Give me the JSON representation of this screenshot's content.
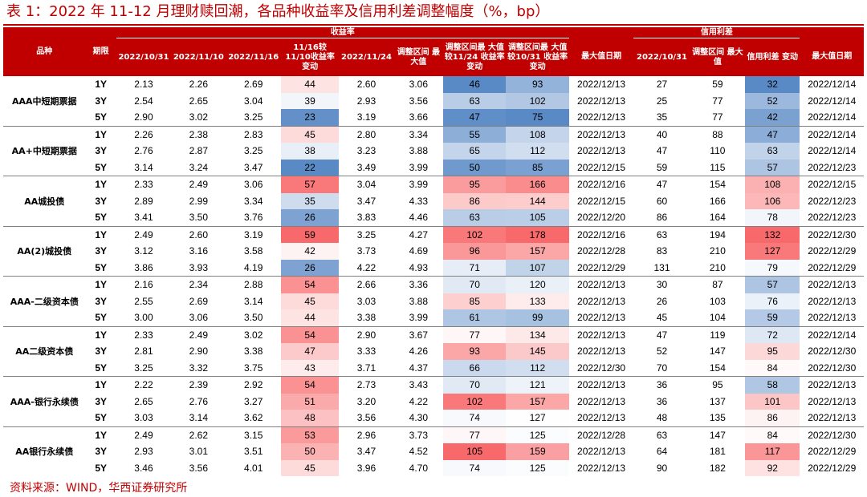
{
  "title": "表 1：2022 年 11-12 月理财赎回潮，各品种收益率及信用利差调整幅度（%，bp）",
  "source": "资料来源：WIND，华西证券研究所",
  "colors": {
    "brand_red": "#c00000",
    "scale_low": "#5a8ac6",
    "scale_mid": "#ffffff",
    "scale_high": "#f8696b"
  },
  "header": {
    "variety": "品种",
    "period": "期限",
    "yield_group": "收益率",
    "spread_group": "信用利差",
    "cols": [
      "2022/10/31",
      "2022/11/10",
      "2022/11/16",
      "11/16较 11/10收益率 变动",
      "2022/11/24",
      "调整区间 最大值",
      "调整区间最 大值较11/24 收益率变动",
      "调整区间最 大值较10/31 收益率变动",
      "最大值日期",
      "2022/10/31",
      "调整区间 最大值",
      "信用利差 变动",
      "最大值日期"
    ]
  },
  "groups": [
    {
      "name": "AAA中短期票据",
      "rows": [
        {
          "term": "1Y",
          "v": [
            "2.13",
            "2.26",
            "2.69",
            "44",
            "2.60",
            "3.06",
            "46",
            "93",
            "2022/12/13",
            "27",
            "59",
            "32",
            "2022/12/14"
          ]
        },
        {
          "term": "3Y",
          "v": [
            "2.54",
            "2.65",
            "3.04",
            "39",
            "2.93",
            "3.56",
            "63",
            "102",
            "2022/12/13",
            "25",
            "77",
            "52",
            "2022/12/14"
          ]
        },
        {
          "term": "5Y",
          "v": [
            "2.90",
            "3.02",
            "3.25",
            "23",
            "3.19",
            "3.66",
            "47",
            "75",
            "2022/12/13",
            "35",
            "77",
            "42",
            "2022/12/14"
          ]
        }
      ]
    },
    {
      "name": "AA+中短期票据",
      "rows": [
        {
          "term": "1Y",
          "v": [
            "2.26",
            "2.38",
            "2.83",
            "45",
            "2.80",
            "3.34",
            "55",
            "108",
            "2022/12/13",
            "40",
            "88",
            "47",
            "2022/12/14"
          ]
        },
        {
          "term": "3Y",
          "v": [
            "2.76",
            "2.87",
            "3.25",
            "38",
            "3.23",
            "3.88",
            "65",
            "112",
            "2022/12/13",
            "47",
            "110",
            "63",
            "2022/12/14"
          ]
        },
        {
          "term": "5Y",
          "v": [
            "3.14",
            "3.24",
            "3.47",
            "22",
            "3.49",
            "3.99",
            "50",
            "85",
            "2022/12/15",
            "59",
            "115",
            "57",
            "2022/12/23"
          ]
        }
      ]
    },
    {
      "name": "AA城投债",
      "rows": [
        {
          "term": "1Y",
          "v": [
            "2.33",
            "2.49",
            "3.06",
            "57",
            "3.04",
            "3.99",
            "95",
            "166",
            "2022/12/16",
            "47",
            "154",
            "108",
            "2022/12/15"
          ]
        },
        {
          "term": "3Y",
          "v": [
            "2.89",
            "2.99",
            "3.34",
            "35",
            "3.47",
            "4.33",
            "86",
            "144",
            "2022/12/15",
            "60",
            "166",
            "106",
            "2022/12/23"
          ]
        },
        {
          "term": "5Y",
          "v": [
            "3.41",
            "3.50",
            "3.76",
            "26",
            "3.83",
            "4.46",
            "63",
            "105",
            "2022/12/20",
            "86",
            "164",
            "78",
            "2022/12/23"
          ]
        }
      ]
    },
    {
      "name": "AA(2)城投债",
      "rows": [
        {
          "term": "1Y",
          "v": [
            "2.49",
            "2.60",
            "3.19",
            "59",
            "3.25",
            "4.27",
            "102",
            "178",
            "2022/12/16",
            "63",
            "194",
            "132",
            "2022/12/30"
          ]
        },
        {
          "term": "3Y",
          "v": [
            "3.12",
            "3.16",
            "3.58",
            "42",
            "3.73",
            "4.69",
            "96",
            "157",
            "2022/12/28",
            "83",
            "210",
            "127",
            "2022/12/29"
          ]
        },
        {
          "term": "5Y",
          "v": [
            "3.86",
            "3.93",
            "4.19",
            "26",
            "4.22",
            "4.93",
            "71",
            "107",
            "2022/12/29",
            "131",
            "210",
            "79",
            "2022/12/29"
          ]
        }
      ]
    },
    {
      "name": "AAA-二级资本债",
      "rows": [
        {
          "term": "1Y",
          "v": [
            "2.16",
            "2.34",
            "2.88",
            "54",
            "2.66",
            "3.36",
            "70",
            "120",
            "2022/12/13",
            "30",
            "87",
            "57",
            "2022/12/13"
          ]
        },
        {
          "term": "3Y",
          "v": [
            "2.55",
            "2.69",
            "3.14",
            "45",
            "3.03",
            "3.88",
            "85",
            "133",
            "2022/12/13",
            "26",
            "103",
            "76",
            "2022/12/13"
          ]
        },
        {
          "term": "5Y",
          "v": [
            "3.00",
            "3.06",
            "3.50",
            "44",
            "3.38",
            "3.99",
            "61",
            "99",
            "2022/12/13",
            "45",
            "104",
            "59",
            "2022/12/13"
          ]
        }
      ]
    },
    {
      "name": "AA二级资本债",
      "rows": [
        {
          "term": "1Y",
          "v": [
            "2.33",
            "2.49",
            "3.02",
            "54",
            "2.90",
            "3.67",
            "77",
            "134",
            "2022/12/13",
            "47",
            "119",
            "72",
            "2022/12/14"
          ]
        },
        {
          "term": "3Y",
          "v": [
            "2.81",
            "2.90",
            "3.38",
            "47",
            "3.33",
            "4.26",
            "93",
            "145",
            "2022/12/13",
            "52",
            "147",
            "95",
            "2022/12/30"
          ]
        },
        {
          "term": "5Y",
          "v": [
            "3.25",
            "3.32",
            "3.75",
            "43",
            "3.71",
            "4.37",
            "66",
            "112",
            "2022/12/30",
            "70",
            "154",
            "84",
            "2022/12/30"
          ]
        }
      ]
    },
    {
      "name": "AAA-银行永续债",
      "rows": [
        {
          "term": "1Y",
          "v": [
            "2.22",
            "2.39",
            "2.92",
            "54",
            "2.73",
            "3.43",
            "70",
            "121",
            "2022/12/13",
            "36",
            "95",
            "58",
            "2022/12/13"
          ]
        },
        {
          "term": "3Y",
          "v": [
            "2.65",
            "2.76",
            "3.27",
            "51",
            "3.20",
            "4.22",
            "102",
            "157",
            "2022/12/13",
            "36",
            "137",
            "101",
            "2022/12/13"
          ]
        },
        {
          "term": "5Y",
          "v": [
            "3.03",
            "3.14",
            "3.62",
            "48",
            "3.56",
            "4.30",
            "74",
            "127",
            "2022/12/13",
            "48",
            "135",
            "86",
            "2022/12/13"
          ]
        }
      ]
    },
    {
      "name": "AA银行永续债",
      "rows": [
        {
          "term": "1Y",
          "v": [
            "2.49",
            "2.62",
            "3.15",
            "53",
            "2.96",
            "3.73",
            "77",
            "125",
            "2022/12/28",
            "63",
            "147",
            "84",
            "2022/12/30"
          ]
        },
        {
          "term": "3Y",
          "v": [
            "2.93",
            "3.01",
            "3.51",
            "50",
            "3.47",
            "4.52",
            "105",
            "159",
            "2022/12/13",
            "64",
            "181",
            "117",
            "2022/12/29"
          ]
        },
        {
          "term": "5Y",
          "v": [
            "3.46",
            "3.56",
            "4.01",
            "45",
            "3.96",
            "4.70",
            "74",
            "125",
            "2022/12/13",
            "90",
            "182",
            "92",
            "2022/12/29"
          ]
        }
      ]
    }
  ]
}
